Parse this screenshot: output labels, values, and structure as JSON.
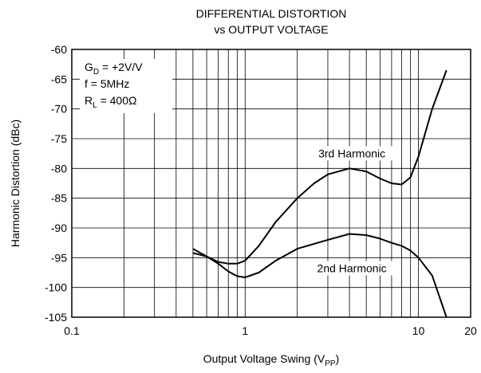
{
  "chart_data": {
    "type": "line",
    "title": [
      "DIFFERENTIAL DISTORTION",
      "vs OUTPUT VOLTAGE"
    ],
    "x_label": {
      "text": "Output Voltage Swing (V",
      "sub": "PP",
      "end": ")"
    },
    "y_label": "Harmonic Distortion (dBc)",
    "annotations": [
      {
        "text": "G",
        "sub": "D",
        "end": " = +2V/V"
      },
      {
        "text": "f = 5MHz",
        "sub": "",
        "end": ""
      },
      {
        "text": "R",
        "sub": "L",
        "end": " = 400Ω"
      }
    ],
    "xscale": "log",
    "xlim": [
      0.1,
      20
    ],
    "xticks": [
      0.1,
      1,
      10,
      20
    ],
    "xgrid": [
      0.2,
      0.3,
      0.4,
      0.5,
      0.6,
      0.7,
      0.8,
      0.9,
      1,
      2,
      3,
      4,
      5,
      6,
      7,
      8,
      9,
      10
    ],
    "ylim": [
      -105,
      -60
    ],
    "yticks": [
      -105,
      -100,
      -95,
      -90,
      -85,
      -80,
      -75,
      -70,
      -65,
      -60
    ],
    "grid": true,
    "series": [
      {
        "name": "3rd Harmonic",
        "color": "#000000",
        "x": [
          0.5,
          0.6,
          0.7,
          0.8,
          0.9,
          1.0,
          1.2,
          1.5,
          2,
          2.5,
          3,
          4,
          5,
          6,
          7,
          8,
          9,
          10,
          12,
          14.5
        ],
        "values": [
          -93.5,
          -94.8,
          -95.7,
          -96,
          -96,
          -95.5,
          -93,
          -89,
          -85,
          -82.5,
          -81,
          -80,
          -80.5,
          -81.7,
          -82.5,
          -82.7,
          -81.5,
          -78,
          -70,
          -63.5
        ]
      },
      {
        "name": "2nd Harmonic",
        "color": "#000000",
        "x": [
          0.5,
          0.6,
          0.7,
          0.8,
          0.9,
          1.0,
          1.2,
          1.5,
          2,
          3,
          4,
          5,
          6,
          7,
          8,
          9,
          10,
          12,
          14.5
        ],
        "values": [
          -94.2,
          -94.8,
          -96,
          -97.3,
          -98.1,
          -98.3,
          -97.5,
          -95.5,
          -93.5,
          -92,
          -91,
          -91.2,
          -91.8,
          -92.5,
          -93,
          -93.8,
          -95,
          -98,
          -105
        ]
      }
    ]
  }
}
